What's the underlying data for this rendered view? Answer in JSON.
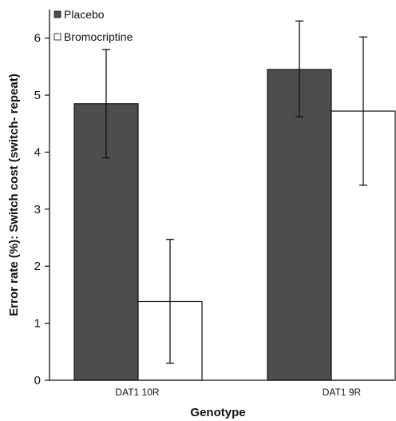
{
  "chart_data": {
    "type": "bar",
    "categories": [
      "DAT1 10R",
      "DAT1 9R"
    ],
    "series": [
      {
        "name": "Placebo",
        "color": "#4d4d4d",
        "values": [
          4.85,
          5.45
        ],
        "error_low": [
          3.9,
          4.62
        ],
        "error_high": [
          5.8,
          6.3
        ]
      },
      {
        "name": "Bromocriptine",
        "color": "#ffffff",
        "values": [
          1.38,
          4.72
        ],
        "error_low": [
          0.3,
          3.42
        ],
        "error_high": [
          2.47,
          6.02
        ]
      }
    ],
    "xlabel": "Genotype",
    "ylabel": "Error rate (%): Switch cost (switch- repeat)",
    "ylim": [
      0,
      6.5
    ],
    "yticks": [
      0,
      1,
      2,
      3,
      4,
      5,
      6
    ],
    "grid": false,
    "legend_position": "top-left"
  }
}
